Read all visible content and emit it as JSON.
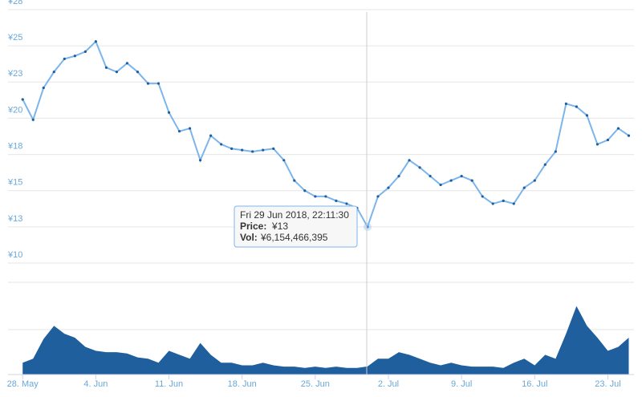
{
  "chart_data": [
    {
      "type": "line",
      "series": [
        {
          "name": "Price",
          "color": "#7cb5ec",
          "values": [
            21.3,
            19.9,
            22.1,
            23.2,
            24.1,
            24.3,
            24.6,
            25.3,
            23.5,
            23.2,
            23.8,
            23.2,
            22.4,
            22.4,
            20.4,
            19.1,
            19.3,
            17.1,
            18.8,
            18.2,
            17.9,
            17.8,
            17.7,
            17.8,
            17.9,
            17.1,
            15.7,
            15,
            14.6,
            14.6,
            14.3,
            14.1,
            13.8,
            12.5,
            14.6,
            15.2,
            16,
            17.1,
            16.6,
            16,
            15.4,
            15.7,
            16,
            15.7,
            14.6,
            14.1,
            14.3,
            14.1,
            15.2,
            15.7,
            16.8,
            17.7,
            21,
            20.8,
            20.2,
            18.2,
            18.5,
            19.3,
            18.8
          ]
        }
      ],
      "x": [
        0,
        1,
        2,
        3,
        4,
        5,
        6,
        7,
        8,
        9,
        10,
        11,
        12,
        13,
        14,
        15,
        16,
        17,
        18,
        19,
        20,
        21,
        22,
        23,
        24,
        25,
        26,
        27,
        28,
        29,
        30,
        31,
        32,
        33,
        34,
        35,
        36,
        37,
        38,
        39,
        40,
        41,
        42,
        43,
        44,
        45,
        46,
        47,
        48,
        49,
        50,
        51,
        52,
        53,
        54,
        55,
        56,
        57,
        58
      ],
      "xlim": [
        -1.4,
        58.5
      ],
      "ylim": [
        10,
        27.5
      ],
      "yticks": [
        {
          "value": 10,
          "label": "¥10"
        },
        {
          "value": 12.5,
          "label": "¥13"
        },
        {
          "value": 15,
          "label": "¥15"
        },
        {
          "value": 17.5,
          "label": "¥18"
        },
        {
          "value": 20,
          "label": "¥20"
        },
        {
          "value": 22.5,
          "label": "¥23"
        },
        {
          "value": 25,
          "label": "¥25"
        },
        {
          "value": 27.5,
          "label": "¥28"
        }
      ],
      "grid": true,
      "tooltip": {
        "date": "Fri 29 Jun 2018, 22:11:30",
        "price_label": "Price:",
        "price": "¥13",
        "vol_label": "Vol:",
        "vol": "¥6,154,466,395"
      }
    },
    {
      "type": "area",
      "series": [
        {
          "name": "Volume",
          "color": "#1f5f9e",
          "values": [
            9,
            12,
            27,
            37,
            31,
            28,
            21,
            18,
            17,
            17,
            16,
            13,
            12,
            9,
            18,
            15,
            12,
            24,
            15,
            9,
            9,
            7,
            7,
            9,
            7,
            6,
            6,
            5,
            6,
            5,
            6,
            5,
            5,
            6.15,
            12,
            12,
            17,
            15,
            12,
            9,
            7,
            9,
            7,
            6,
            6,
            6,
            5,
            9,
            12,
            7,
            15,
            12,
            31,
            52,
            37,
            28,
            18,
            21,
            28
          ]
        }
      ],
      "x": [
        0,
        1,
        2,
        3,
        4,
        5,
        6,
        7,
        8,
        9,
        10,
        11,
        12,
        13,
        14,
        15,
        16,
        17,
        18,
        19,
        20,
        21,
        22,
        23,
        24,
        25,
        26,
        27,
        28,
        29,
        30,
        31,
        32,
        33,
        34,
        35,
        36,
        37,
        38,
        39,
        40,
        41,
        42,
        43,
        44,
        45,
        46,
        47,
        48,
        49,
        50,
        51,
        52,
        53,
        54,
        55,
        56,
        57,
        58
      ],
      "xlim": [
        -1.4,
        58.5
      ],
      "ylim": [
        0,
        70
      ],
      "xticks": [
        {
          "value": 0,
          "label": "28. May"
        },
        {
          "value": 7,
          "label": "4. Jun"
        },
        {
          "value": 14,
          "label": "11. Jun"
        },
        {
          "value": 21,
          "label": "18. Jun"
        },
        {
          "value": 28,
          "label": "25. Jun"
        },
        {
          "value": 35,
          "label": "2. Jul"
        },
        {
          "value": 42,
          "label": "9. Jul"
        },
        {
          "value": 49,
          "label": "16. Jul"
        },
        {
          "value": 56,
          "label": "23. Jul"
        }
      ]
    }
  ]
}
